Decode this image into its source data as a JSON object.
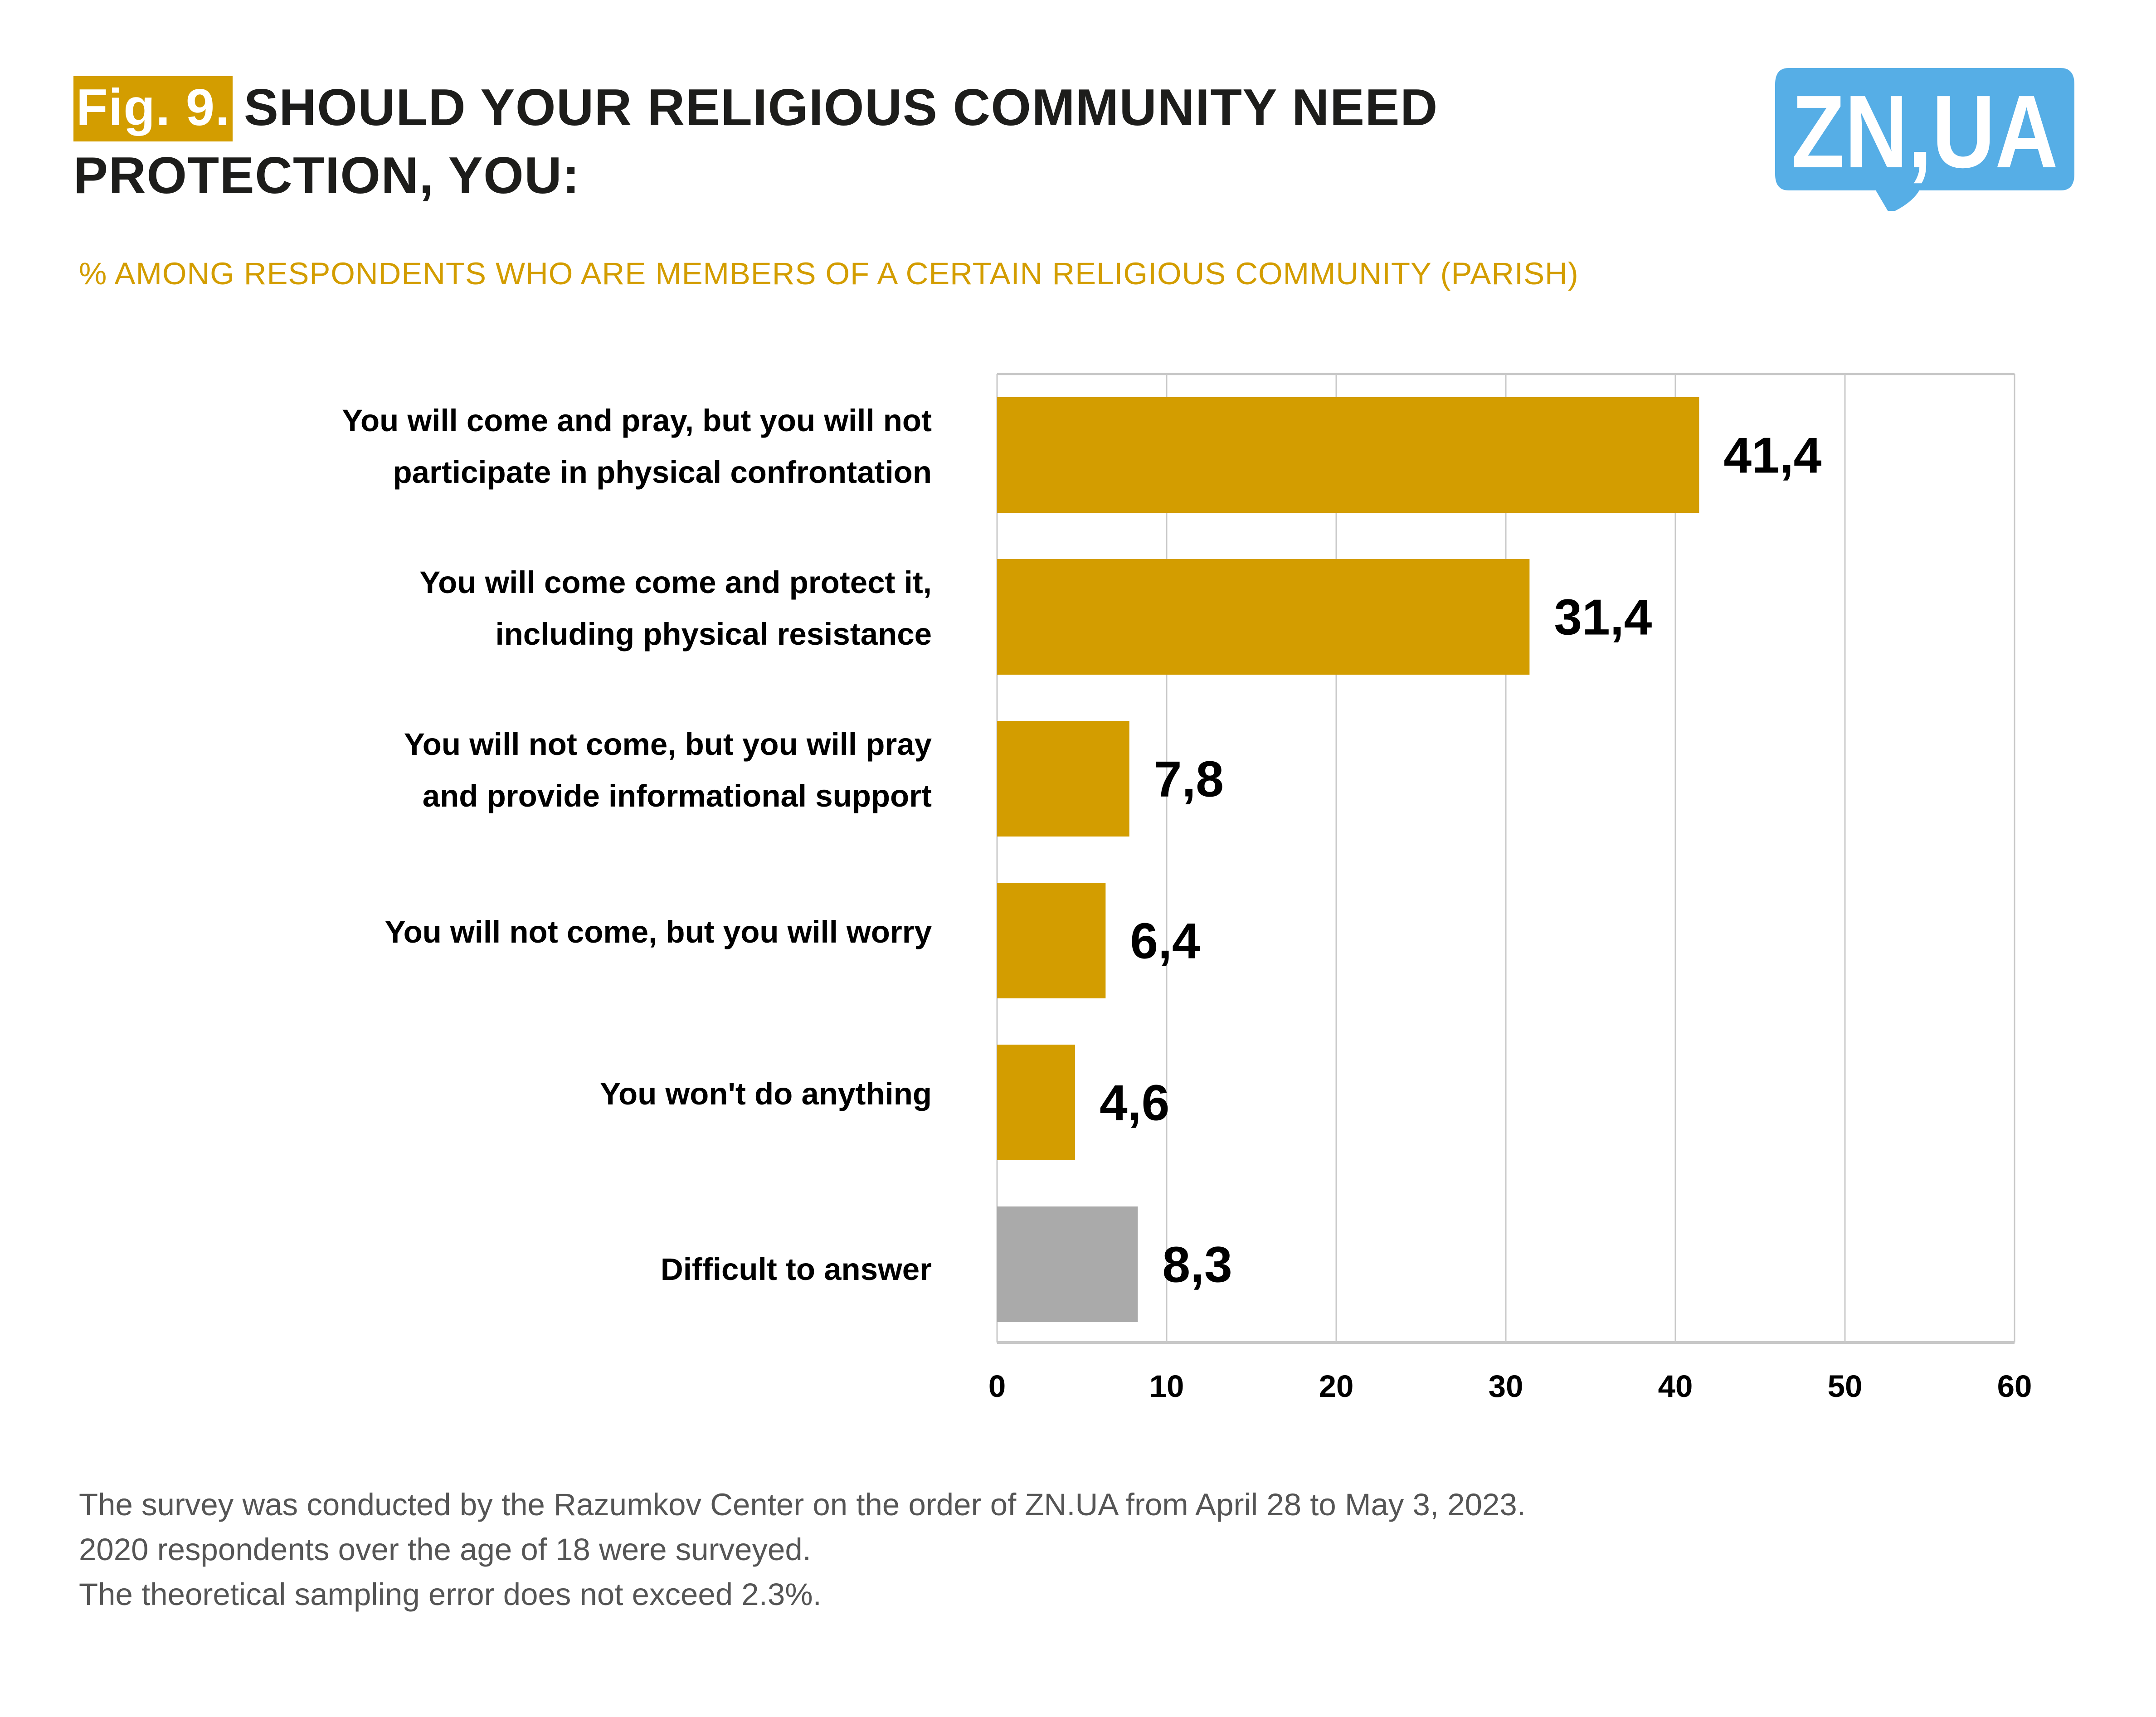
{
  "header": {
    "fig_label": "Fig. 9.",
    "title": "SHOULD YOUR RELIGIOUS COMMUNITY NEED PROTECTION, YOU:",
    "subtitle": "% AMONG RESPONDENTS WHO ARE MEMBERS OF A CERTAIN RELIGIOUS COMMUNITY (PARISH)"
  },
  "logo": {
    "text": "ZN,UA",
    "icon": "speech-bubble-logo",
    "color": "#56aee6"
  },
  "colors": {
    "accent": "#d39d00",
    "neutral": "#aaaaaa",
    "grid": "#c8c8c8",
    "logo": "#56aee6"
  },
  "chart_data": {
    "type": "bar",
    "orientation": "horizontal",
    "title": "SHOULD YOUR RELIGIOUS COMMUNITY NEED PROTECTION, YOU:",
    "subtitle": "% AMONG RESPONDENTS WHO ARE MEMBERS OF A CERTAIN RELIGIOUS COMMUNITY (PARISH)",
    "categories": [
      [
        "You will come and pray, but you will not",
        "participate in physical confrontation"
      ],
      [
        "You will come come and protect it,",
        "including physical resistance"
      ],
      [
        "You will not come, but you will pray",
        "and provide informational support"
      ],
      [
        "You will not come, but you will worry"
      ],
      [
        "You won't do anything"
      ],
      [
        "Difficult to answer"
      ]
    ],
    "values": [
      41.4,
      31.4,
      7.8,
      6.4,
      4.6,
      8.3
    ],
    "value_labels": [
      "41,4",
      "31,4",
      "7,8",
      "6,4",
      "4,6",
      "8,3"
    ],
    "bar_colors": [
      "#d39d00",
      "#d39d00",
      "#d39d00",
      "#d39d00",
      "#d39d00",
      "#aaaaaa"
    ],
    "xlim": [
      0,
      60
    ],
    "xticks": [
      0,
      10,
      20,
      30,
      40,
      50,
      60
    ],
    "xtick_labels": [
      "0",
      "10",
      "20",
      "30",
      "40",
      "50",
      "60"
    ],
    "xlabel": "",
    "ylabel": "",
    "grid": "vertical",
    "legend": "none"
  },
  "footnote": {
    "lines": [
      "The survey was conducted by the Razumkov Center on the order of ZN.UA from April 28 to May 3, 2023.",
      "2020 respondents over the age of 18 were surveyed.",
      "The theoretical sampling error does not exceed 2.3%."
    ]
  }
}
